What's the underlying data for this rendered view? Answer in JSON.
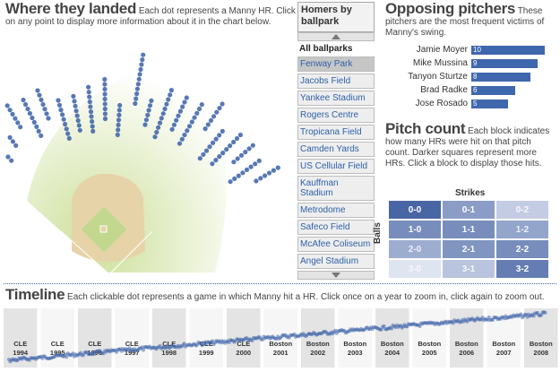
{
  "landed": {
    "title": "Where they landed",
    "desc": "Each dot represents a Manny HR. Click on any point to display more information about it in the chart below."
  },
  "ballparks": {
    "title": "Homers by ballpark",
    "all_label": "All ballparks",
    "items": [
      {
        "label": "Fenway Park",
        "selected": true
      },
      {
        "label": "Jacobs Field"
      },
      {
        "label": "Yankee Stadium"
      },
      {
        "label": "Rogers Centre"
      },
      {
        "label": "Tropicana Field"
      },
      {
        "label": "Camden Yards"
      },
      {
        "label": "US Cellular Field"
      },
      {
        "label": "Kauffman Stadium"
      },
      {
        "label": "Metrodome"
      },
      {
        "label": "Safeco Field"
      },
      {
        "label": "McAfee Coliseum"
      },
      {
        "label": "Angel Stadium"
      }
    ]
  },
  "pitchers": {
    "title": "Opposing pitchers",
    "desc": "These pitchers are the most frequent victims of Manny's swing.",
    "rows": [
      {
        "name": "Jamie Moyer",
        "count": 10
      },
      {
        "name": "Mike Mussina",
        "count": 9
      },
      {
        "name": "Tanyon Sturtze",
        "count": 8
      },
      {
        "name": "Brad Radke",
        "count": 6
      },
      {
        "name": "Jose Rosado",
        "count": 5
      }
    ]
  },
  "pitch_count": {
    "title": "Pitch count",
    "desc": "Each block indicates how many HRs were hit on that pitch count. Darker squares represent more HRs. Click a block to display those hits.",
    "strikes_label": "Strikes",
    "balls_label": "Balls",
    "cells": [
      {
        "label": "0-0",
        "level": 0.85
      },
      {
        "label": "0-1",
        "level": 0.5
      },
      {
        "label": "0-2",
        "level": 0.2
      },
      {
        "label": "1-0",
        "level": 0.6
      },
      {
        "label": "1-1",
        "level": 0.6
      },
      {
        "label": "1-2",
        "level": 0.45
      },
      {
        "label": "2-0",
        "level": 0.4
      },
      {
        "label": "2-1",
        "level": 0.55
      },
      {
        "label": "2-2",
        "level": 0.6
      },
      {
        "label": "3-0",
        "level": 0.05
      },
      {
        "label": "3-1",
        "level": 0.25
      },
      {
        "label": "3-2",
        "level": 0.7
      }
    ]
  },
  "timeline": {
    "title": "Timeline",
    "desc": "Each clickable dot represents a game in which Manny hit a HR. Click once on a year to zoom in, click again to zoom out.",
    "years": [
      {
        "team": "CLE",
        "year": "1994"
      },
      {
        "team": "CLE",
        "year": "1995"
      },
      {
        "team": "CLE",
        "year": "1996"
      },
      {
        "team": "CLE",
        "year": "1997"
      },
      {
        "team": "CLE",
        "year": "1998"
      },
      {
        "team": "CLE",
        "year": "1999"
      },
      {
        "team": "CLE",
        "year": "2000"
      },
      {
        "team": "Boston",
        "year": "2001"
      },
      {
        "team": "Boston",
        "year": "2002"
      },
      {
        "team": "Boston",
        "year": "2003"
      },
      {
        "team": "Boston",
        "year": "2004"
      },
      {
        "team": "Boston",
        "year": "2005"
      },
      {
        "team": "Boston",
        "year": "2006"
      },
      {
        "team": "Boston",
        "year": "2007"
      },
      {
        "team": "Boston",
        "year": "2008"
      }
    ]
  },
  "colors": {
    "accent": "#3f67ad",
    "dot": "#3a60a8",
    "infield_dirt": "#e6d3a8",
    "grass": "#dbe7b6"
  }
}
